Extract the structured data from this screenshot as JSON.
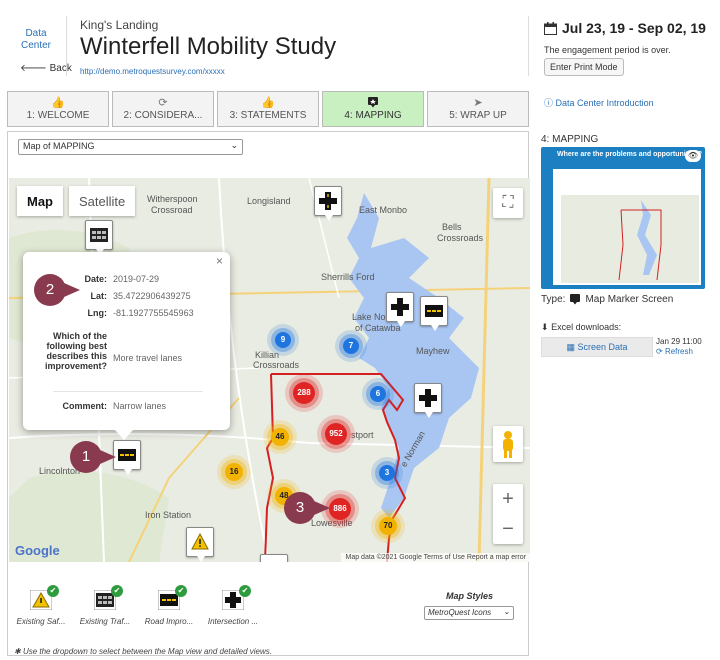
{
  "header": {
    "data_center_label": "Data Center",
    "back_label": "Back",
    "subtitle": "King's Landing",
    "title": "Winterfell Mobility Study",
    "url": "http://demo.metroquestsurvey.com/xxxxx",
    "date_range": "Jul 23, 19 - Sep 02, 19",
    "period_note": "The engagement period is over.",
    "print_mode_label": "Enter Print Mode"
  },
  "tabs": [
    {
      "label": "1: WELCOME",
      "icon": "thumbs-up-icon",
      "active": false
    },
    {
      "label": "2: CONSIDERA...",
      "icon": "refresh-icon",
      "active": false
    },
    {
      "label": "3: STATEMENTS",
      "icon": "thumbs-up-icon",
      "active": false
    },
    {
      "label": "4: MAPPING",
      "icon": "map-marker-icon",
      "active": true
    },
    {
      "label": "5: WRAP UP",
      "icon": "send-icon",
      "active": false
    }
  ],
  "map_selector": {
    "value": "Map of MAPPING"
  },
  "map": {
    "type_map_label": "Map",
    "type_satellite_label": "Satellite",
    "place_labels": {
      "witherspoon": "Witherspoon",
      "witherspoon2": "Crossroad",
      "longisland": "Longisland",
      "eastmonbo": "East Monbo",
      "bells": "Bells",
      "bells2": "Crossroads",
      "sherrills": "Sherrills Ford",
      "lakenorman": "Lake Norman",
      "lakenorman2": "of Catawba",
      "mayhew": "Mayhew",
      "killian": "Killian",
      "killian2": "Crossroads",
      "westport": "stport",
      "lincolnton": "Lincolnton",
      "ironstation": "Iron Station",
      "lowesville": "Lowesville",
      "norman": "e Norman"
    },
    "attribution": "Map data ©2021 Google   Terms of Use   Report a map error",
    "google_label": "Google",
    "zoom_in": "+",
    "zoom_out": "−",
    "clusters": {
      "c1": {
        "value": "9",
        "color": "blue"
      },
      "c2": {
        "value": "7",
        "color": "blue"
      },
      "c3": {
        "value": "288",
        "color": "red"
      },
      "c4": {
        "value": "6",
        "color": "blue"
      },
      "c5": {
        "value": "46",
        "color": "yellow"
      },
      "c6": {
        "value": "952",
        "color": "red"
      },
      "c7": {
        "value": "16",
        "color": "yellow"
      },
      "c8": {
        "value": "3",
        "color": "blue"
      },
      "c9": {
        "value": "48",
        "color": "yellow"
      },
      "c10": {
        "value": "886",
        "color": "red"
      },
      "c11": {
        "value": "70",
        "color": "yellow"
      }
    }
  },
  "popup": {
    "close_label": "×",
    "date_key": "Date:",
    "date_val": "2019-07-29",
    "lat_key": "Lat:",
    "lat_val": "35.4722906439275",
    "lng_key": "Lng:",
    "lng_val": "-81.1927755545963",
    "q_key": "Which of the following best describes this improvement?",
    "q_val": "More travel lanes",
    "comment_key": "Comment:",
    "comment_val": "Narrow lanes"
  },
  "callouts": {
    "one": "1",
    "two": "2",
    "three": "3"
  },
  "legend": {
    "items": [
      {
        "label": "Existing Saf...",
        "icon": "warning-icon"
      },
      {
        "label": "Existing Traf...",
        "icon": "traffic-icon"
      },
      {
        "label": "Road Impro...",
        "icon": "road-icon"
      },
      {
        "label": "Intersection ...",
        "icon": "intersection-icon"
      }
    ],
    "check": "✔",
    "map_styles_label": "Map Styles",
    "map_styles_value": "MetroQuest Icons"
  },
  "footnote": "Use the dropdown to select between the Map view and detailed views.",
  "right": {
    "intro_link": "Data Center Introduction",
    "preview_label": "4: MAPPING",
    "preview_title": "Where are the problems and opportunities?",
    "type_prefix": "Type:",
    "type_value": "Map Marker Screen",
    "excel_label": "Excel downloads:",
    "screen_data_label": "Screen Data",
    "excel_date": "Jan 29 11:00",
    "refresh_label": "Refresh"
  },
  "colors": {
    "accent_blue": "#2a6fb5",
    "active_tab": "#c9f0c1",
    "water": "#a9c6f2",
    "boundary": "#d42020",
    "callout": "#8a3a4e"
  }
}
